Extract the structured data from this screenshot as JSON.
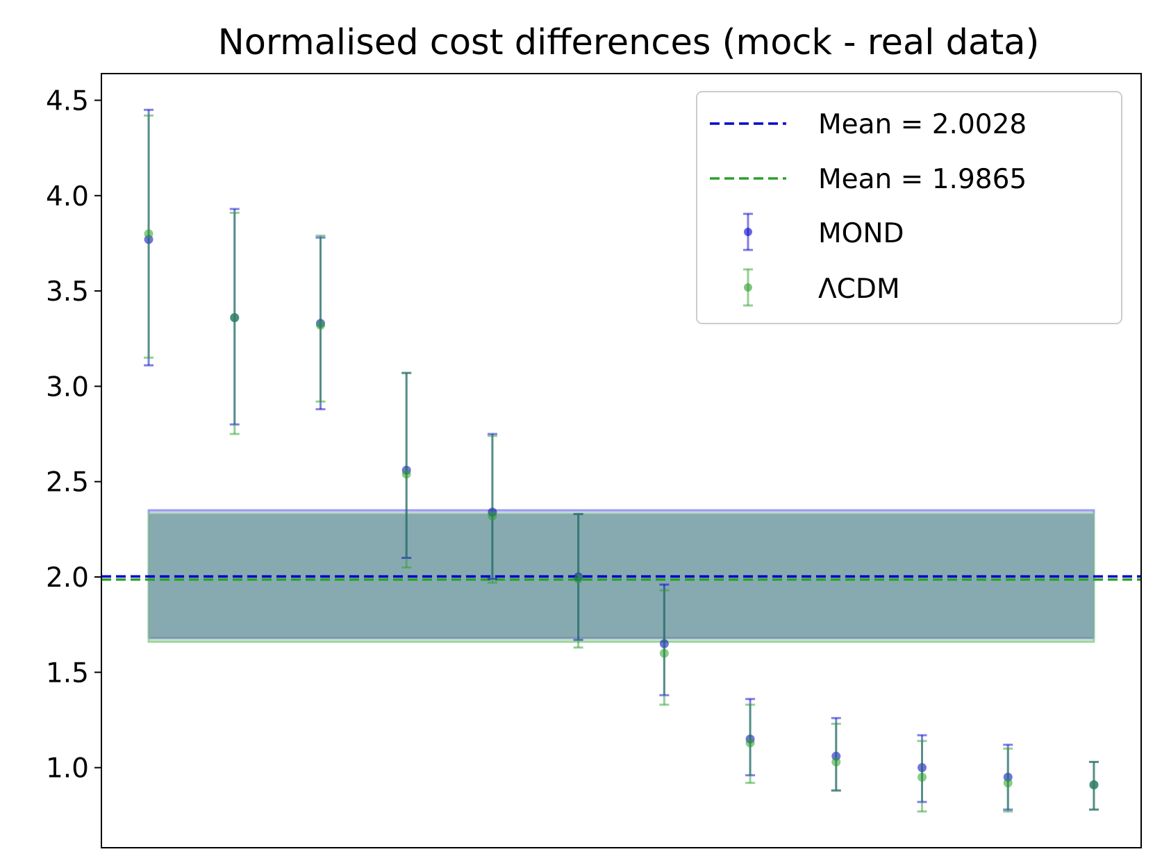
{
  "chart_data": {
    "type": "scatter",
    "title": "Normalised cost differences (mock - real data)",
    "xlabel": "",
    "ylabel": "",
    "xlim": [
      -0.55,
      11.55
    ],
    "ylim": [
      0.58,
      4.64
    ],
    "yticks": [
      "1.0",
      "1.5",
      "2.0",
      "2.5",
      "3.0",
      "3.5",
      "4.0",
      "4.5"
    ],
    "ytick_values": [
      1.0,
      1.5,
      2.0,
      2.5,
      3.0,
      3.5,
      4.0,
      4.5
    ],
    "x_ticks_shown": false,
    "grid": false,
    "legend_position": "top-right",
    "colors": {
      "mond": "#0000cc",
      "lcdm": "#2ca02c",
      "mond_band": "#8a8aee",
      "lcdm_band": "#8fd08f"
    },
    "reference_lines": [
      {
        "label": "Mean = 2.0028",
        "y": 2.0028,
        "color": "#0000cc",
        "style": "dashed"
      },
      {
        "label": "Mean = 1.9865",
        "y": 1.9865,
        "color": "#2ca02c",
        "style": "dashed"
      }
    ],
    "bands": [
      {
        "series": "MOND",
        "x": [
          0,
          11
        ],
        "y": [
          1.68,
          2.35
        ]
      },
      {
        "series": "ΛCDM",
        "x": [
          0,
          11
        ],
        "y": [
          1.66,
          2.33
        ]
      }
    ],
    "x": [
      0,
      1,
      2,
      3,
      4,
      5,
      6,
      7,
      8,
      9,
      10,
      11
    ],
    "series": [
      {
        "name": "MOND",
        "marker": "errorbar",
        "y": [
          3.77,
          3.36,
          3.33,
          2.56,
          2.34,
          2.0,
          1.65,
          1.15,
          1.06,
          1.0,
          0.95,
          0.91
        ],
        "ylow": [
          3.11,
          2.8,
          2.88,
          2.1,
          1.99,
          1.67,
          1.38,
          0.96,
          0.88,
          0.82,
          0.78,
          0.78
        ],
        "yhigh": [
          4.45,
          3.93,
          3.78,
          3.07,
          2.75,
          2.33,
          1.96,
          1.36,
          1.26,
          1.17,
          1.12,
          1.03
        ]
      },
      {
        "name": "ΛCDM",
        "marker": "errorbar",
        "y": [
          3.8,
          3.36,
          3.32,
          2.54,
          2.32,
          1.99,
          1.6,
          1.13,
          1.03,
          0.95,
          0.92,
          0.91
        ],
        "ylow": [
          3.15,
          2.75,
          2.92,
          2.05,
          1.97,
          1.63,
          1.33,
          0.92,
          0.88,
          0.77,
          0.77,
          0.78
        ],
        "yhigh": [
          4.42,
          3.91,
          3.79,
          3.07,
          2.74,
          2.33,
          1.93,
          1.33,
          1.23,
          1.14,
          1.1,
          1.03
        ]
      }
    ]
  }
}
